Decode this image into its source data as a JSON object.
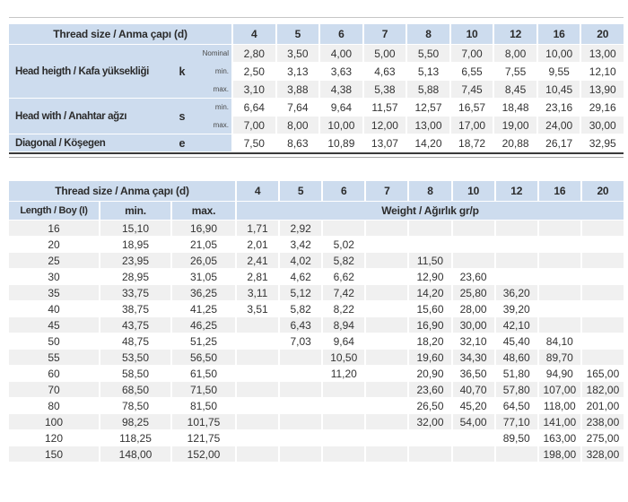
{
  "colors": {
    "header_blue": "#cddcee",
    "stripe_gray": "#f0f0f0",
    "border_dark": "#3a3a3a",
    "top_line": "#c6c6c6"
  },
  "table1": {
    "title": "Thread size / Anma çapı (d)",
    "columns": [
      "4",
      "5",
      "6",
      "7",
      "8",
      "10",
      "12",
      "16",
      "20"
    ],
    "row_groups": [
      {
        "label": "Head heigth / Kafa yüksekliği",
        "symbol": "k",
        "rows": [
          {
            "sub": "Nominal",
            "values": [
              "2,80",
              "3,50",
              "4,00",
              "5,00",
              "5,50",
              "7,00",
              "8,00",
              "10,00",
              "13,00"
            ]
          },
          {
            "sub": "min.",
            "values": [
              "2,50",
              "3,13",
              "3,63",
              "4,63",
              "5,13",
              "6,55",
              "7,55",
              "9,55",
              "12,10"
            ]
          },
          {
            "sub": "max.",
            "values": [
              "3,10",
              "3,88",
              "4,38",
              "5,38",
              "5,88",
              "7,45",
              "8,45",
              "10,45",
              "13,90"
            ]
          }
        ]
      },
      {
        "label": "Head with / Anahtar ağzı",
        "symbol": "s",
        "rows": [
          {
            "sub": "min.",
            "values": [
              "6,64",
              "7,64",
              "9,64",
              "11,57",
              "12,57",
              "16,57",
              "18,48",
              "23,16",
              "29,16"
            ]
          },
          {
            "sub": "max.",
            "values": [
              "7,00",
              "8,00",
              "10,00",
              "12,00",
              "13,00",
              "17,00",
              "19,00",
              "24,00",
              "30,00"
            ]
          }
        ]
      },
      {
        "label": "Diagonal / Köşegen",
        "symbol": "e",
        "rows": [
          {
            "sub": "",
            "values": [
              "7,50",
              "8,63",
              "10,89",
              "13,07",
              "14,20",
              "18,72",
              "20,88",
              "26,17",
              "32,95"
            ]
          }
        ]
      }
    ]
  },
  "table2": {
    "title": "Thread size / Anma çapı (d)",
    "columns": [
      "4",
      "5",
      "6",
      "7",
      "8",
      "10",
      "12",
      "16",
      "20"
    ],
    "length_header": "Length / Boy (I)",
    "min_header": "min.",
    "max_header": "max.",
    "weight_header": "Weight / Ağırlık gr/p",
    "rows": [
      {
        "length": "16",
        "min": "15,10",
        "max": "16,90",
        "weights": [
          "1,71",
          "2,92",
          "",
          "",
          "",
          "",
          "",
          "",
          ""
        ]
      },
      {
        "length": "20",
        "min": "18,95",
        "max": "21,05",
        "weights": [
          "2,01",
          "3,42",
          "5,02",
          "",
          "",
          "",
          "",
          "",
          ""
        ]
      },
      {
        "length": "25",
        "min": "23,95",
        "max": "26,05",
        "weights": [
          "2,41",
          "4,02",
          "5,82",
          "",
          "11,50",
          "",
          "",
          "",
          ""
        ]
      },
      {
        "length": "30",
        "min": "28,95",
        "max": "31,05",
        "weights": [
          "2,81",
          "4,62",
          "6,62",
          "",
          "12,90",
          "23,60",
          "",
          "",
          ""
        ]
      },
      {
        "length": "35",
        "min": "33,75",
        "max": "36,25",
        "weights": [
          "3,11",
          "5,12",
          "7,42",
          "",
          "14,20",
          "25,80",
          "36,20",
          "",
          ""
        ]
      },
      {
        "length": "40",
        "min": "38,75",
        "max": "41,25",
        "weights": [
          "3,51",
          "5,82",
          "8,22",
          "",
          "15,60",
          "28,00",
          "39,20",
          "",
          ""
        ]
      },
      {
        "length": "45",
        "min": "43,75",
        "max": "46,25",
        "weights": [
          "",
          "6,43",
          "8,94",
          "",
          "16,90",
          "30,00",
          "42,10",
          "",
          ""
        ]
      },
      {
        "length": "50",
        "min": "48,75",
        "max": "51,25",
        "weights": [
          "",
          "7,03",
          "9,64",
          "",
          "18,20",
          "32,10",
          "45,40",
          "84,10",
          ""
        ]
      },
      {
        "length": "55",
        "min": "53,50",
        "max": "56,50",
        "weights": [
          "",
          "",
          "10,50",
          "",
          "19,60",
          "34,30",
          "48,60",
          "89,70",
          ""
        ]
      },
      {
        "length": "60",
        "min": "58,50",
        "max": "61,50",
        "weights": [
          "",
          "",
          "11,20",
          "",
          "20,90",
          "36,50",
          "51,80",
          "94,90",
          "165,00"
        ]
      },
      {
        "length": "70",
        "min": "68,50",
        "max": "71,50",
        "weights": [
          "",
          "",
          "",
          "",
          "23,60",
          "40,70",
          "57,80",
          "107,00",
          "182,00"
        ]
      },
      {
        "length": "80",
        "min": "78,50",
        "max": "81,50",
        "weights": [
          "",
          "",
          "",
          "",
          "26,50",
          "45,20",
          "64,50",
          "118,00",
          "201,00"
        ]
      },
      {
        "length": "100",
        "min": "98,25",
        "max": "101,75",
        "weights": [
          "",
          "",
          "",
          "",
          "32,00",
          "54,00",
          "77,10",
          "141,00",
          "238,00"
        ]
      },
      {
        "length": "120",
        "min": "118,25",
        "max": "121,75",
        "weights": [
          "",
          "",
          "",
          "",
          "",
          "",
          "89,50",
          "163,00",
          "275,00"
        ]
      },
      {
        "length": "150",
        "min": "148,00",
        "max": "152,00",
        "weights": [
          "",
          "",
          "",
          "",
          "",
          "",
          "",
          "198,00",
          "328,00"
        ]
      }
    ]
  }
}
